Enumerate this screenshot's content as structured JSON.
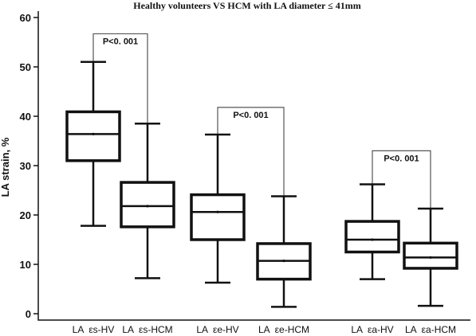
{
  "chart_data": {
    "type": "box",
    "title": "Healthy volunteers VS HCM with LA diameter ≤ 41mm",
    "ylabel": "LA strain, %",
    "xlabel": "",
    "ylim": [
      0,
      60
    ],
    "yticks": [
      0,
      10,
      20,
      30,
      40,
      50,
      60
    ],
    "grid": false,
    "categories": [
      "LA  εs-HV",
      "LA  εs-HCM",
      "LA  εe-HV",
      "LA  εe-HCM",
      "LA  εa-HV",
      "LA  εa-HCM"
    ],
    "boxes": [
      {
        "category": "LA  εs-HV",
        "min": 17.8,
        "q1": 31.0,
        "median": 36.4,
        "q3": 40.9,
        "max": 51.0
      },
      {
        "category": "LA  εs-HCM",
        "min": 7.2,
        "q1": 17.6,
        "median": 21.8,
        "q3": 26.6,
        "max": 38.5
      },
      {
        "category": "LA  εe-HV",
        "min": 6.3,
        "q1": 15.0,
        "median": 20.6,
        "q3": 24.1,
        "max": 36.3
      },
      {
        "category": "LA  εe-HCM",
        "min": 1.4,
        "q1": 7.0,
        "median": 10.7,
        "q3": 14.2,
        "max": 23.8
      },
      {
        "category": "LA  εa-HV",
        "min": 7.0,
        "q1": 12.5,
        "median": 15.0,
        "q3": 18.7,
        "max": 26.2
      },
      {
        "category": "LA  εa-HCM",
        "min": 1.6,
        "q1": 9.2,
        "median": 11.4,
        "q3": 14.3,
        "max": 21.3
      }
    ],
    "comparisons": [
      {
        "from": 0,
        "to": 1,
        "label": "P<0. 001",
        "y": 56.7
      },
      {
        "from": 2,
        "to": 3,
        "label": "P<0. 001",
        "y": 41.8
      },
      {
        "from": 4,
        "to": 5,
        "label": "P<0. 001",
        "y": 33.0
      }
    ]
  }
}
